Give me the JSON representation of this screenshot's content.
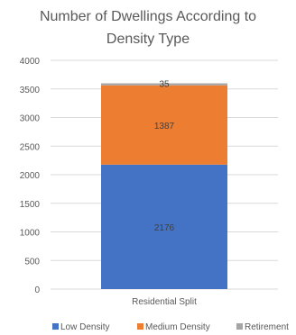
{
  "chart_data": {
    "type": "bar",
    "stacked": true,
    "title_lines": [
      "Number of Dwellings According to",
      "Density Type"
    ],
    "categories": [
      "Residential Split"
    ],
    "series": [
      {
        "name": "Low Density",
        "values": [
          2176
        ],
        "color": "#4472C4"
      },
      {
        "name": "Medium Density",
        "values": [
          1387
        ],
        "color": "#ED7D31"
      },
      {
        "name": "Retirement",
        "values": [
          35
        ],
        "color": "#A5A5A5"
      }
    ],
    "yticks": [
      "0",
      "500",
      "1000",
      "1500",
      "2000",
      "2500",
      "3000",
      "3500",
      "4000"
    ],
    "ylim": [
      0,
      4000
    ],
    "grid": true,
    "legend_position": "bottom"
  }
}
